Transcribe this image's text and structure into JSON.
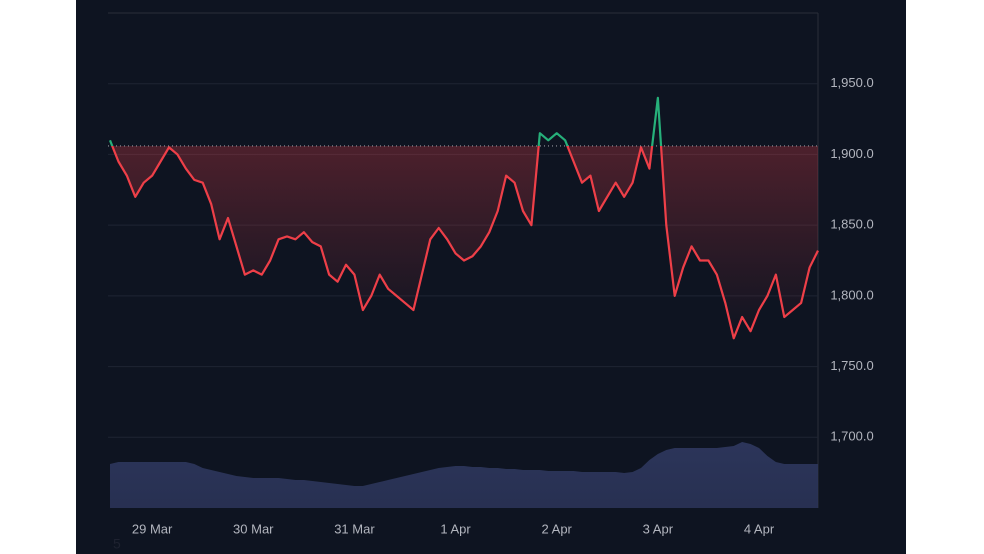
{
  "chart_data": {
    "type": "line",
    "x_ticks_note_free": null,
    "categories": null,
    "xlim": [
      0,
      84
    ],
    "xticks": [
      {
        "value": 5,
        "label": "29 Mar"
      },
      {
        "value": 17,
        "label": "30 Mar"
      },
      {
        "value": 29,
        "label": "31 Mar"
      },
      {
        "value": 41,
        "label": "1 Apr"
      },
      {
        "value": 53,
        "label": "2 Apr"
      },
      {
        "value": 65,
        "label": "3 Apr"
      },
      {
        "value": 77,
        "label": "4 Apr"
      }
    ],
    "ylim": [
      1650,
      2000
    ],
    "yticks": [
      {
        "value": 1700,
        "label": "1,700.0"
      },
      {
        "value": 1750,
        "label": "1,750.0"
      },
      {
        "value": 1800,
        "label": "1,800.0"
      },
      {
        "value": 1850,
        "label": "1,850.0"
      },
      {
        "value": 1900,
        "label": "1,900.0"
      },
      {
        "value": 1950,
        "label": "1,950.0"
      }
    ],
    "grid": true,
    "baseline": 1906,
    "colors": {
      "above": "#26b07a",
      "below": "#ee3f48",
      "volume": "#2c355a"
    },
    "series": [
      {
        "values": [
          1910,
          1895,
          1885,
          1870,
          1880,
          1885,
          1895,
          1905,
          1900,
          1890,
          1882,
          1880,
          1865,
          1840,
          1855,
          1835,
          1815,
          1818,
          1815,
          1825,
          1840,
          1842,
          1840,
          1845,
          1838,
          1835,
          1815,
          1810,
          1822,
          1815,
          1790,
          1800,
          1815,
          1805,
          1800,
          1795,
          1790,
          1815,
          1840,
          1848,
          1840,
          1830,
          1825,
          1828,
          1835,
          1845,
          1860,
          1885,
          1880,
          1860,
          1850,
          1915,
          1910,
          1915,
          1910,
          1895,
          1880,
          1885,
          1860,
          1870,
          1880,
          1870,
          1880,
          1905,
          1890,
          1940,
          1850,
          1800,
          1820,
          1835,
          1825,
          1825,
          1815,
          1795,
          1770,
          1785,
          1775,
          1790,
          1800,
          1815,
          1785,
          1790,
          1795,
          1820,
          1832
        ]
      }
    ],
    "volume": {
      "vlim": [
        0,
        100
      ],
      "values": [
        44,
        46,
        46,
        46,
        46,
        46,
        46,
        46,
        46,
        46,
        44,
        40,
        38,
        36,
        34,
        32,
        31,
        30,
        30,
        30,
        30,
        29,
        28,
        28,
        27,
        26,
        25,
        24,
        23,
        22,
        22,
        24,
        26,
        28,
        30,
        32,
        34,
        36,
        38,
        40,
        41,
        42,
        42,
        41,
        41,
        40,
        40,
        39,
        39,
        38,
        38,
        38,
        37,
        37,
        37,
        37,
        36,
        36,
        36,
        36,
        36,
        35,
        36,
        40,
        48,
        54,
        58,
        60,
        60,
        60,
        60,
        60,
        60,
        61,
        62,
        66,
        64,
        60,
        52,
        46,
        44,
        44,
        44,
        44,
        44
      ]
    },
    "watermark": "5"
  }
}
